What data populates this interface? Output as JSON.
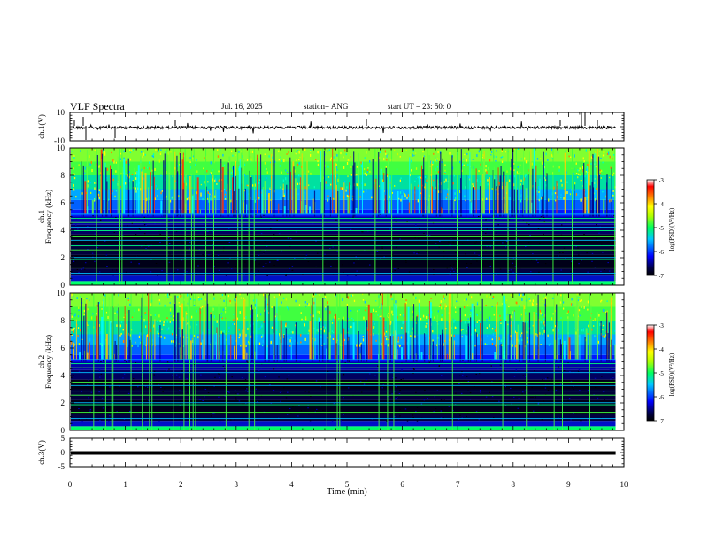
{
  "header": {
    "title": "VLF Spectra",
    "date": "Jul. 16, 2025",
    "station": "station= ANG",
    "start": "start UT =  23: 50: 0"
  },
  "chart_data": [
    {
      "type": "line",
      "panel": "ch1-waveform",
      "ylabel": "ch.1(V)",
      "ylim": [
        -10,
        10
      ],
      "yticks": [
        "10",
        "-10"
      ],
      "xlim": [
        0,
        10
      ]
    },
    {
      "type": "heatmap",
      "panel": "ch1-spectrogram",
      "ylabel_top": "ch.1",
      "ylabel": "Frequency (kHz)",
      "ylim": [
        0,
        10
      ],
      "yticks": [
        "0",
        "2",
        "4",
        "6",
        "8",
        "10"
      ],
      "xlim": [
        0,
        10
      ],
      "colorbar": {
        "label": "log(PSD)(V²/Hz)",
        "range": [
          -7,
          -3
        ],
        "ticks": [
          "-3",
          "-4",
          "-5",
          "-6",
          "-7"
        ]
      }
    },
    {
      "type": "heatmap",
      "panel": "ch2-spectrogram",
      "ylabel_top": "ch.2",
      "ylabel": "Frequency (kHz)",
      "ylim": [
        0,
        10
      ],
      "yticks": [
        "0",
        "2",
        "4",
        "6",
        "8",
        "10"
      ],
      "xlim": [
        0,
        10
      ],
      "colorbar": {
        "label": "log(PSD)(V²/Hz)",
        "range": [
          -7,
          -3
        ],
        "ticks": [
          "-3",
          "-4",
          "-5",
          "-6",
          "-7"
        ]
      }
    },
    {
      "type": "line",
      "panel": "ch3-waveform",
      "ylabel": "ch.3(V)",
      "ylim": [
        -5,
        5
      ],
      "yticks": [
        "5",
        "0",
        "-5"
      ],
      "xlim": [
        0,
        10
      ],
      "xlabel": "Time (min)",
      "xticks": [
        "0",
        "1",
        "2",
        "3",
        "4",
        "5",
        "6",
        "7",
        "8",
        "9",
        "10"
      ]
    }
  ]
}
